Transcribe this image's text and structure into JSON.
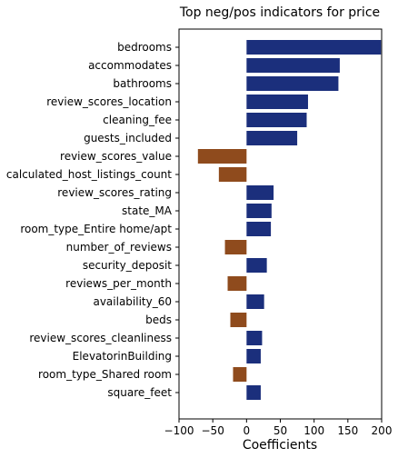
{
  "chart_data": {
    "type": "bar",
    "orientation": "horizontal",
    "title": "Top neg/pos indicators for price",
    "xlabel": "Coefficients",
    "ylabel": "",
    "xlim": [
      -100,
      200
    ],
    "xticks": [
      "−100",
      "−50",
      "0",
      "50",
      "100",
      "150",
      "200"
    ],
    "xtick_values": [
      -100,
      -50,
      0,
      50,
      100,
      150,
      200
    ],
    "grid": false,
    "colors": {
      "positive": "#1b2f7c",
      "negative": "#8f4b1d"
    },
    "categories": [
      "bedrooms",
      "accommodates",
      "bathrooms",
      "review_scores_location",
      "cleaning_fee",
      "guests_included",
      "review_scores_value",
      "calculated_host_listings_count",
      "review_scores_rating",
      "state_MA",
      "room_type_Entire home/apt",
      "number_of_reviews",
      "security_deposit",
      "reviews_per_month",
      "availability_60",
      "beds",
      "review_scores_cleanliness",
      "ElevatorinBuilding",
      "room_type_Shared room",
      "square_feet"
    ],
    "values": [
      199,
      138,
      136,
      91,
      89,
      75,
      -72,
      -41,
      40,
      37,
      36,
      -32,
      30,
      -28,
      26,
      -24,
      23,
      21,
      -20,
      21
    ]
  }
}
